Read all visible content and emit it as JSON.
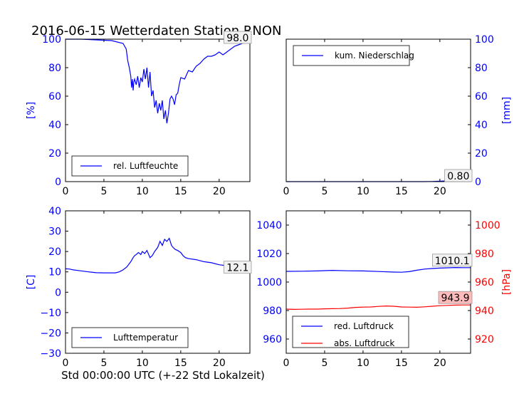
{
  "title": "2016-06-15 Wetterdaten Station RNON",
  "xlabel": "Std 00:00:00 UTC (+-22 Std Lokalzeit)",
  "colors": {
    "primary": "#0000ff",
    "secondary": "#ff0000",
    "annotation_fill": "#ffbbbb"
  },
  "chart_data": [
    {
      "type": "line",
      "panel": "top-left",
      "title": "",
      "xlabel": "",
      "ylabel": "[%]",
      "xlim": [
        0,
        24
      ],
      "ylim": [
        0,
        100
      ],
      "xticks": [
        0,
        5,
        10,
        15,
        20
      ],
      "yticks": [
        0,
        20,
        40,
        60,
        80,
        100
      ],
      "grid": false,
      "legend": "lower-left",
      "last_value_label": "98.0",
      "series": [
        {
          "name": "rel. Luftfeuchte",
          "color": "#0000ff",
          "x": [
            0,
            2,
            4,
            6,
            7.5,
            7.9,
            8.1,
            8.3,
            8.5,
            8.6,
            8.7,
            8.8,
            8.9,
            9.0,
            9.2,
            9.4,
            9.6,
            9.8,
            10.0,
            10.2,
            10.4,
            10.6,
            10.8,
            11.0,
            11.2,
            11.4,
            11.6,
            11.8,
            12.0,
            12.2,
            12.4,
            12.6,
            12.8,
            13.0,
            13.2,
            13.4,
            13.6,
            13.8,
            14.0,
            14.2,
            14.4,
            14.6,
            14.8,
            15.0,
            15.5,
            16.0,
            16.5,
            17.0,
            17.5,
            18.0,
            18.5,
            19.0,
            19.5,
            20.0,
            20.5,
            21.0,
            21.5,
            22.0,
            22.5,
            23.0,
            23.5,
            24.0
          ],
          "y": [
            100,
            100,
            99.5,
            99,
            97,
            93,
            85,
            80,
            74,
            66,
            72,
            64,
            70,
            72,
            68,
            74,
            66,
            73,
            70,
            79,
            72,
            80,
            66,
            77,
            60,
            64,
            52,
            57,
            48,
            55,
            50,
            57,
            44,
            50,
            41,
            48,
            58,
            60,
            58,
            54,
            61,
            62,
            68,
            73,
            72,
            78,
            77,
            81,
            83,
            86,
            88,
            88,
            89,
            91,
            89,
            91,
            93,
            95,
            96,
            97,
            97.5,
            98
          ]
        }
      ]
    },
    {
      "type": "line",
      "panel": "top-right",
      "title": "",
      "xlabel": "",
      "ylabel": "[mm]",
      "xlim": [
        0,
        24
      ],
      "ylim": [
        0,
        100
      ],
      "xticks": [
        0,
        5,
        10,
        15,
        20
      ],
      "yticks": [
        0,
        20,
        40,
        60,
        80,
        100
      ],
      "grid": false,
      "legend": "upper-left",
      "last_value_label": "0.80",
      "series": [
        {
          "name": "kum. Niederschlag",
          "color": "#0000ff",
          "x": [
            0,
            18,
            19,
            20,
            21,
            22,
            23,
            24
          ],
          "y": [
            0,
            0,
            0.1,
            0.3,
            0.5,
            0.7,
            0.8,
            0.8
          ]
        }
      ]
    },
    {
      "type": "line",
      "panel": "bottom-left",
      "title": "",
      "xlabel": "",
      "ylabel": "[C]",
      "xlim": [
        0,
        24
      ],
      "ylim": [
        -30,
        40
      ],
      "xticks": [
        0,
        5,
        10,
        15,
        20
      ],
      "yticks": [
        -30,
        -20,
        -10,
        0,
        10,
        20,
        30,
        40
      ],
      "grid": false,
      "legend": "lower-left",
      "last_value_label": "12.1",
      "series": [
        {
          "name": "Lufttemperatur",
          "color": "#0000ff",
          "x": [
            0,
            0.5,
            1,
            2,
            3,
            4,
            5,
            6,
            6.5,
            7,
            7.5,
            8,
            8.5,
            8.8,
            9.0,
            9.2,
            9.5,
            9.8,
            10.0,
            10.3,
            10.6,
            11.0,
            11.3,
            11.6,
            12.0,
            12.3,
            12.6,
            12.9,
            13.2,
            13.5,
            13.8,
            14.0,
            14.3,
            14.6,
            15.0,
            15.3,
            15.6,
            16.0,
            17.0,
            18.0,
            19.0,
            20.0,
            21.0,
            22.0,
            23.0,
            24.0
          ],
          "y": [
            11.5,
            11.4,
            11.0,
            10.5,
            10.0,
            9.6,
            9.5,
            9.5,
            9.5,
            10.0,
            11.0,
            12.5,
            15,
            17,
            18,
            18.5,
            19.5,
            18.5,
            20,
            19,
            20.5,
            17,
            18,
            20,
            22,
            25,
            23,
            26,
            25,
            26.5,
            23,
            22,
            21,
            20.5,
            19.5,
            18,
            17,
            16.5,
            16,
            15,
            14.5,
            13.5,
            13,
            12.5,
            12.3,
            12.1
          ]
        }
      ]
    },
    {
      "type": "line",
      "panel": "bottom-right",
      "title": "",
      "xlabel": "",
      "ylabel": "[hPa]",
      "xlim": [
        0,
        24
      ],
      "ylim": [
        950,
        1050
      ],
      "ylim_right": [
        910,
        1010
      ],
      "xticks": [
        0,
        5,
        10,
        15,
        20
      ],
      "yticks": [
        960,
        980,
        1000,
        1020,
        1040
      ],
      "yticks_right": [
        920,
        940,
        960,
        980,
        1000
      ],
      "grid": false,
      "legend": "lower-left",
      "series": [
        {
          "name": "red. Luftdruck",
          "color": "#0000ff",
          "axis": "left",
          "last_value_label": "1010.1",
          "x": [
            0,
            2,
            4,
            6,
            8,
            10,
            12,
            14,
            15,
            16,
            17,
            18,
            19,
            20,
            21,
            22,
            23,
            24
          ],
          "y": [
            1007.5,
            1007.6,
            1007.8,
            1008.2,
            1007.9,
            1007.8,
            1007.4,
            1007.0,
            1006.9,
            1007.3,
            1008.3,
            1009.1,
            1009.5,
            1009.8,
            1010.0,
            1010.2,
            1010.1,
            1010.1
          ]
        },
        {
          "name": "abs. Luftdruck",
          "color": "#ff0000",
          "axis": "right",
          "last_value_label": "943.9",
          "x": [
            0,
            1,
            2,
            3,
            4,
            5,
            6,
            7,
            8,
            9,
            10,
            11,
            12,
            13,
            14,
            15,
            16,
            17,
            18,
            19,
            20,
            21,
            22,
            23,
            24
          ],
          "y": [
            941.0,
            940.8,
            940.9,
            941.0,
            941.0,
            941.2,
            941.3,
            941.4,
            941.7,
            942.2,
            942.4,
            942.5,
            942.9,
            943.2,
            943.0,
            942.5,
            942.4,
            942.3,
            942.6,
            943.0,
            943.4,
            943.6,
            943.8,
            943.9,
            943.9
          ]
        }
      ]
    }
  ]
}
